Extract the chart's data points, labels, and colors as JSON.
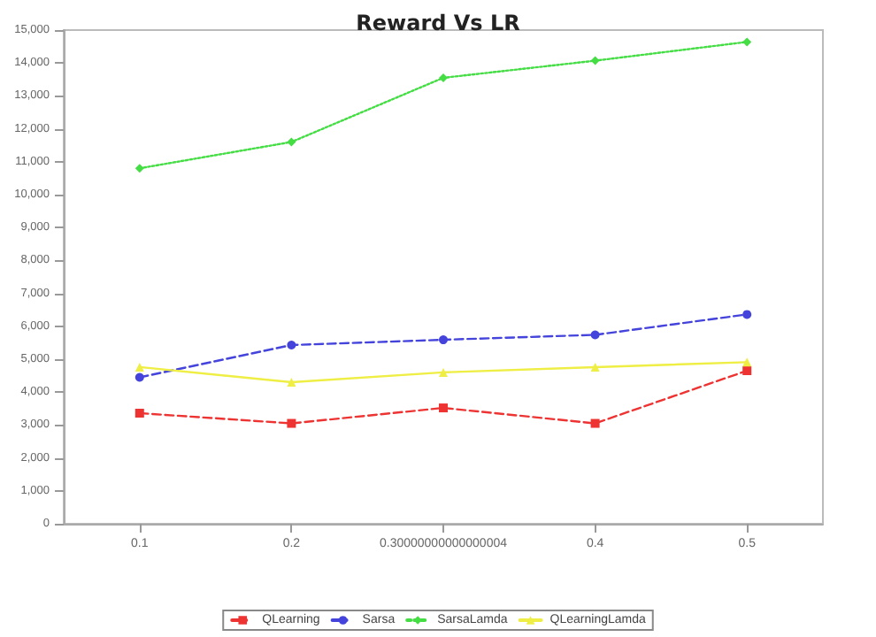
{
  "chart_data": {
    "type": "line",
    "title": "Reward Vs LR",
    "categories": [
      "0.1",
      "0.2",
      "0.30000000000000004",
      "0.4",
      "0.5"
    ],
    "series": [
      {
        "name": "QLearning",
        "color": "#ee3333",
        "values": [
          3360,
          3050,
          3520,
          3050,
          4650
        ],
        "marker": "square",
        "line_style": "dashed"
      },
      {
        "name": "Sarsa",
        "color": "#4444dd",
        "values": [
          4450,
          5430,
          5590,
          5740,
          6360
        ],
        "marker": "circle",
        "line_style": "dashed"
      },
      {
        "name": "SarsaLamda",
        "color": "#44dd44",
        "values": [
          10800,
          11600,
          13550,
          14070,
          14640
        ],
        "marker": "diamond",
        "line_style": "dotted"
      },
      {
        "name": "QLearningLamda",
        "color": "#eeee44",
        "values": [
          4760,
          4300,
          4600,
          4760,
          4910
        ],
        "marker": "triangle",
        "line_style": "solid"
      }
    ],
    "ylim": [
      0,
      15000
    ],
    "yticks": [
      {
        "value": 0,
        "label": "0"
      },
      {
        "value": 1000,
        "label": "1,000"
      },
      {
        "value": 2000,
        "label": "2,000"
      },
      {
        "value": 3000,
        "label": "3,000"
      },
      {
        "value": 4000,
        "label": "4,000"
      },
      {
        "value": 5000,
        "label": "5,000"
      },
      {
        "value": 6000,
        "label": "6,000"
      },
      {
        "value": 7000,
        "label": "7,000"
      },
      {
        "value": 8000,
        "label": "8,000"
      },
      {
        "value": 9000,
        "label": "9,000"
      },
      {
        "value": 10000,
        "label": "10,000"
      },
      {
        "value": 11000,
        "label": "11,000"
      },
      {
        "value": 12000,
        "label": "12,000"
      },
      {
        "value": 13000,
        "label": "13,000"
      },
      {
        "value": 14000,
        "label": "14,000"
      },
      {
        "value": 15000,
        "label": "15,000"
      }
    ],
    "grid": false,
    "legend": "bottom"
  }
}
